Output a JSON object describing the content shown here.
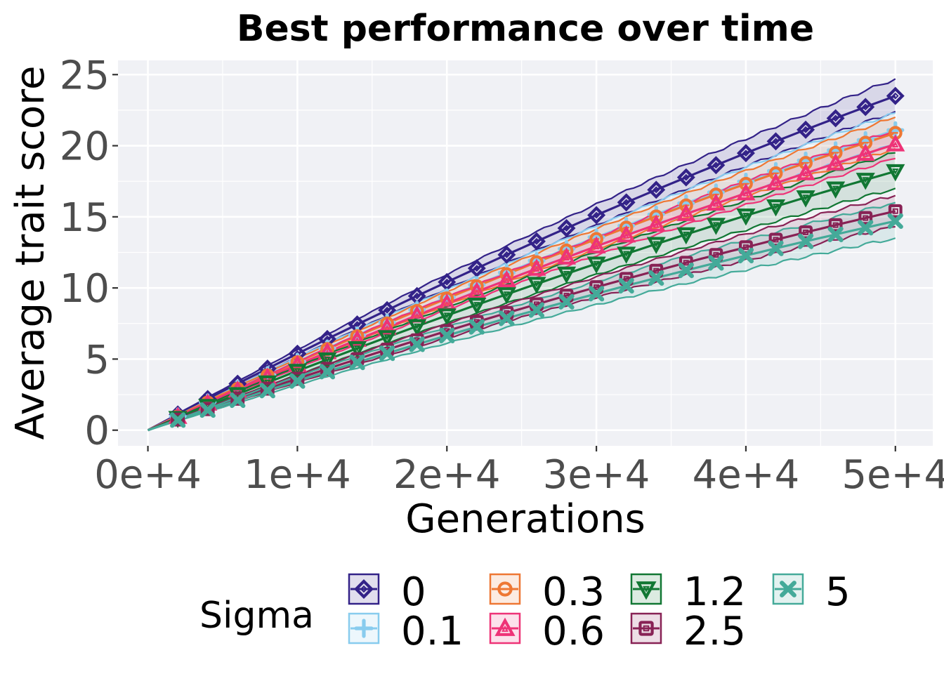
{
  "chart_data": {
    "type": "line",
    "title": "Best performance over time",
    "xlabel": "Generations",
    "ylabel": "Average trait score",
    "xlim": [
      -2000,
      52500
    ],
    "ylim": [
      -1.1,
      26.0
    ],
    "x_ticks": [
      0,
      10000,
      20000,
      30000,
      40000,
      50000
    ],
    "x_tick_labels": [
      "0e+4",
      "1e+4",
      "2e+4",
      "3e+4",
      "4e+4",
      "5e+4"
    ],
    "y_ticks": [
      0,
      5,
      10,
      15,
      20,
      25
    ],
    "y_tick_labels": [
      "0",
      "5",
      "10",
      "15",
      "20",
      "25"
    ],
    "grid": true,
    "panel_background": "#f0f1f5",
    "marker_interval": 2000,
    "legend": {
      "title": "Sigma",
      "position": "bottom"
    },
    "series": [
      {
        "name": "0",
        "color": "#332288",
        "marker": "diamond",
        "final": 23.5,
        "lower": 22.4,
        "upper": 24.7,
        "curve": 1.18
      },
      {
        "name": "0.1",
        "color": "#88ccee",
        "marker": "plus",
        "final": 21.1,
        "lower": 20.1,
        "upper": 22.3,
        "curve": 1.18
      },
      {
        "name": "0.3",
        "color": "#ee7733",
        "marker": "circle",
        "final": 20.9,
        "lower": 19.8,
        "upper": 22.0,
        "curve": 1.18
      },
      {
        "name": "0.6",
        "color": "#ee3377",
        "marker": "triangle-up",
        "final": 20.1,
        "lower": 19.1,
        "upper": 21.1,
        "curve": 1.18
      },
      {
        "name": "1.2",
        "color": "#117733",
        "marker": "triangle-down",
        "final": 18.2,
        "lower": 17.0,
        "upper": 19.5,
        "curve": 1.18
      },
      {
        "name": "2.5",
        "color": "#882255",
        "marker": "square",
        "final": 15.4,
        "lower": 14.3,
        "upper": 16.5,
        "curve": 1.22
      },
      {
        "name": "5",
        "color": "#44aa99",
        "marker": "x",
        "final": 14.7,
        "lower": 13.5,
        "upper": 16.0,
        "curve": 1.22
      }
    ]
  }
}
